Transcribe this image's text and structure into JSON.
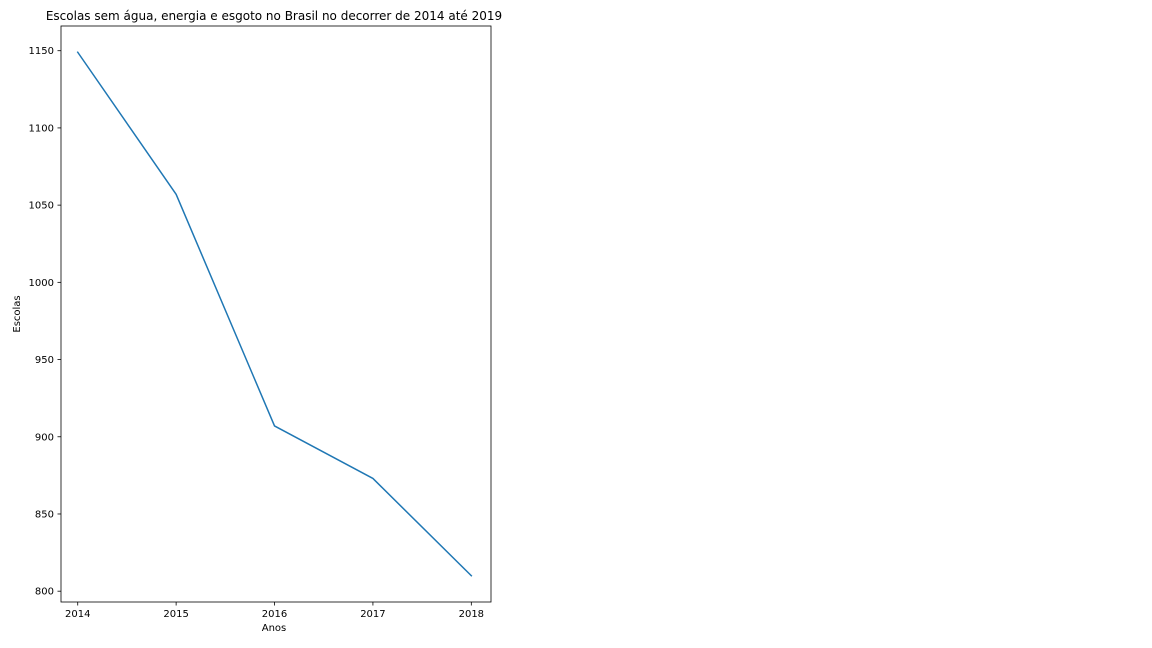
{
  "chart_data": {
    "type": "line",
    "title": "Escolas sem água, energia e esgoto no Brasil no decorrer de 2014 até 2019",
    "xlabel": "Anos",
    "ylabel": "Escolas",
    "x": [
      2014,
      2015,
      2016,
      2017,
      2018
    ],
    "series": [
      {
        "values": [
          1149,
          1057,
          907,
          873,
          810
        ],
        "color": "#1f77b4"
      }
    ],
    "xlim": [
      2013.83,
      2018.2
    ],
    "ylim": [
      793,
      1166
    ],
    "xticks": [
      "2014",
      "2015",
      "2016",
      "2017",
      "2018"
    ],
    "yticks": [
      "800",
      "850",
      "900",
      "950",
      "1000",
      "1050",
      "1100",
      "1150"
    ],
    "grid": false,
    "legend": "none"
  }
}
